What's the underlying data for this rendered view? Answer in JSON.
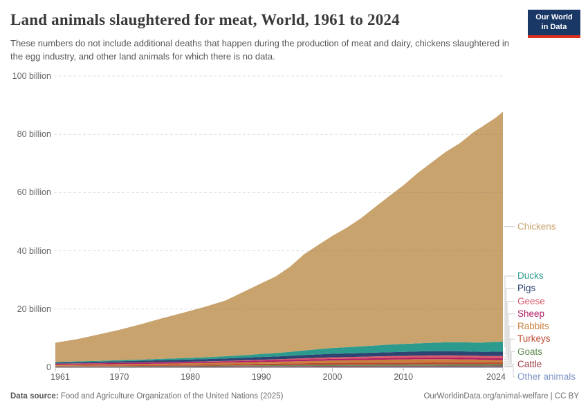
{
  "header": {
    "title": "Land animals slaughtered for meat, World, 1961 to 2024",
    "subtitle": "These numbers do not include additional deaths that happen during the production of meat and dairy, chickens slaughtered in the egg industry, and other land animals for which there is no data.",
    "logo": {
      "line1": "Our World",
      "line2": "in Data"
    }
  },
  "chart_data": {
    "type": "area",
    "stacked": true,
    "title": "Land animals slaughtered for meat, World, 1961 to 2024",
    "xlabel": "",
    "ylabel": "",
    "unit": "billion animals per year",
    "ylim": [
      0,
      100
    ],
    "xlim": [
      1961,
      2024
    ],
    "grid": "dashed-horizontal",
    "legend_position": "right-direct-labels",
    "x": [
      1961,
      1964,
      1967,
      1970,
      1973,
      1976,
      1979,
      1982,
      1985,
      1988,
      1990,
      1992,
      1994,
      1996,
      1998,
      2000,
      2002,
      2004,
      2006,
      2008,
      2010,
      2012,
      2014,
      2016,
      2018,
      2020,
      2021,
      2022,
      2023,
      2024
    ],
    "series": [
      {
        "name": "Chickens",
        "color": "#C9A36E",
        "values": [
          6.6,
          7.6,
          9.0,
          10.4,
          12.1,
          13.9,
          15.6,
          17.3,
          19.2,
          22.3,
          24.3,
          26.3,
          29.2,
          33.0,
          35.8,
          38.5,
          41.0,
          44.0,
          47.5,
          51.0,
          54.5,
          58.5,
          62.0,
          65.5,
          68.5,
          72.5,
          74.0,
          75.5,
          77.0,
          79.0
        ]
      },
      {
        "name": "Ducks",
        "color": "#2C9B8D",
        "values": [
          0.22,
          0.26,
          0.3,
          0.35,
          0.4,
          0.47,
          0.53,
          0.62,
          0.75,
          0.9,
          1.0,
          1.15,
          1.35,
          1.6,
          1.8,
          2.0,
          2.15,
          2.3,
          2.45,
          2.6,
          2.7,
          2.8,
          2.9,
          3.0,
          3.1,
          3.15,
          3.2,
          3.3,
          3.35,
          3.4
        ]
      },
      {
        "name": "Pigs",
        "color": "#2E4372",
        "values": [
          0.38,
          0.42,
          0.48,
          0.55,
          0.6,
          0.66,
          0.73,
          0.78,
          0.85,
          0.9,
          0.95,
          0.97,
          1.02,
          1.08,
          1.15,
          1.2,
          1.23,
          1.27,
          1.3,
          1.35,
          1.38,
          1.42,
          1.45,
          1.48,
          1.45,
          1.35,
          1.4,
          1.45,
          1.5,
          1.52
        ]
      },
      {
        "name": "Geese",
        "color": "#DB5A6A",
        "values": [
          0.05,
          0.06,
          0.07,
          0.08,
          0.09,
          0.1,
          0.11,
          0.13,
          0.17,
          0.22,
          0.27,
          0.32,
          0.38,
          0.45,
          0.5,
          0.55,
          0.58,
          0.6,
          0.62,
          0.64,
          0.66,
          0.67,
          0.68,
          0.7,
          0.71,
          0.72,
          0.72,
          0.73,
          0.74,
          0.75
        ]
      },
      {
        "name": "Sheep",
        "color": "#AF1D66",
        "values": [
          0.33,
          0.34,
          0.36,
          0.38,
          0.39,
          0.41,
          0.42,
          0.43,
          0.45,
          0.48,
          0.5,
          0.51,
          0.51,
          0.52,
          0.52,
          0.52,
          0.53,
          0.53,
          0.55,
          0.55,
          0.55,
          0.56,
          0.56,
          0.58,
          0.59,
          0.6,
          0.61,
          0.62,
          0.63,
          0.64
        ]
      },
      {
        "name": "Rabbits",
        "color": "#C97F3D",
        "values": [
          0.35,
          0.37,
          0.4,
          0.42,
          0.44,
          0.47,
          0.49,
          0.52,
          0.55,
          0.59,
          0.62,
          0.65,
          0.68,
          0.72,
          0.78,
          0.85,
          0.88,
          0.92,
          0.95,
          1.02,
          1.1,
          1.13,
          1.15,
          1.1,
          1.02,
          0.95,
          0.88,
          0.82,
          0.78,
          0.75
        ]
      },
      {
        "name": "Turkeys",
        "color": "#BE4B31",
        "values": [
          0.14,
          0.16,
          0.19,
          0.22,
          0.25,
          0.29,
          0.33,
          0.38,
          0.42,
          0.48,
          0.52,
          0.54,
          0.58,
          0.62,
          0.64,
          0.65,
          0.65,
          0.66,
          0.68,
          0.67,
          0.65,
          0.66,
          0.66,
          0.67,
          0.66,
          0.65,
          0.63,
          0.62,
          0.61,
          0.6
        ]
      },
      {
        "name": "Goats",
        "color": "#628C50",
        "values": [
          0.12,
          0.13,
          0.14,
          0.15,
          0.16,
          0.18,
          0.19,
          0.21,
          0.23,
          0.25,
          0.27,
          0.29,
          0.31,
          0.33,
          0.35,
          0.38,
          0.39,
          0.4,
          0.42,
          0.43,
          0.44,
          0.45,
          0.46,
          0.48,
          0.49,
          0.5,
          0.5,
          0.51,
          0.52,
          0.52
        ]
      },
      {
        "name": "Cattle",
        "color": "#9A3A44",
        "values": [
          0.17,
          0.18,
          0.19,
          0.2,
          0.21,
          0.22,
          0.23,
          0.24,
          0.25,
          0.26,
          0.27,
          0.27,
          0.28,
          0.29,
          0.29,
          0.3,
          0.3,
          0.3,
          0.31,
          0.31,
          0.31,
          0.32,
          0.32,
          0.33,
          0.33,
          0.33,
          0.33,
          0.33,
          0.34,
          0.34
        ]
      },
      {
        "name": "Other animals",
        "color": "#7C94C6",
        "values": [
          0.08,
          0.09,
          0.09,
          0.1,
          0.1,
          0.11,
          0.11,
          0.12,
          0.13,
          0.14,
          0.15,
          0.16,
          0.16,
          0.17,
          0.18,
          0.18,
          0.19,
          0.19,
          0.2,
          0.21,
          0.21,
          0.22,
          0.22,
          0.23,
          0.24,
          0.24,
          0.24,
          0.25,
          0.25,
          0.26
        ]
      }
    ],
    "yticks": [
      {
        "value": 0,
        "label": "0"
      },
      {
        "value": 20,
        "label": "20 billion"
      },
      {
        "value": 40,
        "label": "40 billion"
      },
      {
        "value": 60,
        "label": "60 billion"
      },
      {
        "value": 80,
        "label": "80 billion"
      },
      {
        "value": 100,
        "label": "100 billion"
      }
    ],
    "xticks": [
      1961,
      1970,
      1980,
      1990,
      2000,
      2010,
      2024
    ]
  },
  "footer": {
    "source_label": "Data source:",
    "source_text": "Food and Agriculture Organization of the United Nations (2025)",
    "right_text": "OurWorldinData.org/animal-welfare | CC BY"
  }
}
